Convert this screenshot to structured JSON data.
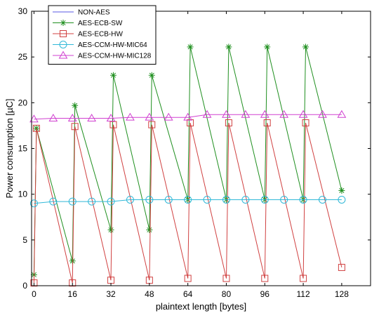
{
  "chart_data": {
    "type": "line",
    "title": "",
    "xlabel": "plaintext length [bytes]",
    "ylabel": "Power consumption [µC]",
    "xlim": [
      -1,
      140
    ],
    "ylim": [
      0,
      30
    ],
    "xticks": [
      0,
      16,
      32,
      48,
      64,
      80,
      96,
      112,
      128
    ],
    "yticks": [
      0,
      5,
      10,
      15,
      20,
      25,
      30
    ],
    "legend_position": "top-left",
    "grid": false,
    "series": [
      {
        "name": "NON-AES",
        "color": "#5a5ae6",
        "marker": "none",
        "points": [
          [
            0,
            0
          ],
          [
            128,
            0
          ]
        ]
      },
      {
        "name": "AES-ECB-SW",
        "color": "#1f8f1f",
        "marker": "star",
        "points": [
          [
            0,
            1.2
          ],
          [
            1,
            17.2
          ],
          [
            16,
            2.7
          ],
          [
            17,
            19.7
          ],
          [
            32,
            6.1
          ],
          [
            33,
            23.0
          ],
          [
            48,
            6.1
          ],
          [
            49,
            23.0
          ],
          [
            64,
            9.4
          ],
          [
            65,
            26.1
          ],
          [
            80,
            9.4
          ],
          [
            81,
            26.1
          ],
          [
            96,
            9.4
          ],
          [
            97,
            26.1
          ],
          [
            112,
            9.4
          ],
          [
            113,
            26.1
          ],
          [
            128,
            10.4
          ]
        ]
      },
      {
        "name": "AES-ECB-HW",
        "color": "#d04040",
        "marker": "square",
        "points": [
          [
            0,
            0.3
          ],
          [
            1,
            17.2
          ],
          [
            16,
            0.3
          ],
          [
            17,
            17.4
          ],
          [
            32,
            0.6
          ],
          [
            33,
            17.6
          ],
          [
            48,
            0.6
          ],
          [
            49,
            17.6
          ],
          [
            64,
            0.8
          ],
          [
            65,
            17.8
          ],
          [
            80,
            0.8
          ],
          [
            81,
            17.8
          ],
          [
            96,
            0.8
          ],
          [
            97,
            17.8
          ],
          [
            112,
            0.8
          ],
          [
            113,
            17.8
          ],
          [
            128,
            2.0
          ]
        ]
      },
      {
        "name": "AES-CCM-HW-MIC64",
        "color": "#30b8d8",
        "marker": "circle",
        "points": [
          [
            0,
            9.0
          ],
          [
            8,
            9.2
          ],
          [
            16,
            9.2
          ],
          [
            24,
            9.2
          ],
          [
            32,
            9.2
          ],
          [
            40,
            9.4
          ],
          [
            48,
            9.4
          ],
          [
            56,
            9.4
          ],
          [
            64,
            9.4
          ],
          [
            72,
            9.4
          ],
          [
            80,
            9.4
          ],
          [
            88,
            9.4
          ],
          [
            96,
            9.4
          ],
          [
            104,
            9.4
          ],
          [
            112,
            9.4
          ],
          [
            120,
            9.4
          ],
          [
            128,
            9.4
          ]
        ]
      },
      {
        "name": "AES-CCM-HW-MIC128",
        "color": "#d040d0",
        "marker": "triangle",
        "points": [
          [
            0,
            18.2
          ],
          [
            8,
            18.3
          ],
          [
            16,
            18.3
          ],
          [
            24,
            18.3
          ],
          [
            32,
            18.3
          ],
          [
            40,
            18.4
          ],
          [
            48,
            18.4
          ],
          [
            56,
            18.4
          ],
          [
            64,
            18.4
          ],
          [
            72,
            18.7
          ],
          [
            80,
            18.7
          ],
          [
            88,
            18.7
          ],
          [
            96,
            18.7
          ],
          [
            104,
            18.7
          ],
          [
            112,
            18.7
          ],
          [
            120,
            18.7
          ],
          [
            128,
            18.7
          ]
        ]
      }
    ]
  }
}
